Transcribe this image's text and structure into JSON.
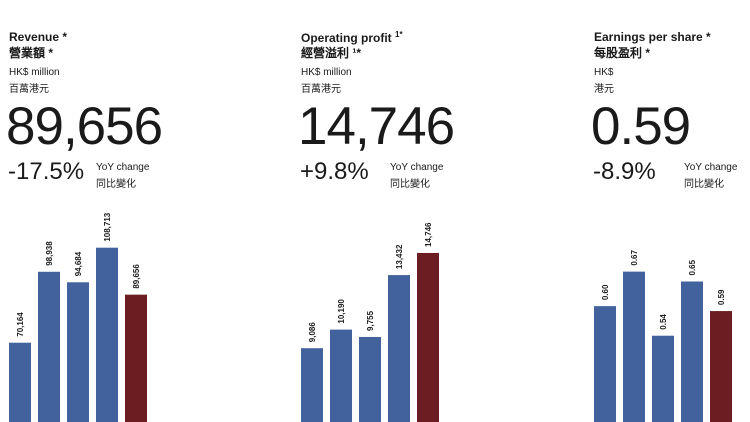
{
  "colors": {
    "bar": "#41629d",
    "highlight": "#6b1d22",
    "text": "#1a1a1a"
  },
  "charts": [
    {
      "title_en": "Revenue *",
      "title_en_sup": "",
      "title_zh": "營業額 *",
      "unit_en": "HK$ million",
      "unit_zh": "百萬港元",
      "value": "89,656",
      "change": "-17.5%",
      "yoy_en": "YoY change",
      "yoy_zh": "同比變化"
    },
    {
      "title_en": "Operating profit",
      "title_en_sup": "1*",
      "title_zh": "經營溢利 ¹*",
      "unit_en": "HK$ million",
      "unit_zh": "百萬港元",
      "value": "14,746",
      "change": "+9.8%",
      "yoy_en": "YoY change",
      "yoy_zh": "同比變化"
    },
    {
      "title_en": "Earnings per share *",
      "title_en_sup": "",
      "title_zh": "每股盈利 *",
      "unit_en": "HK$",
      "unit_zh": "港元",
      "value": "0.59",
      "change": "-8.9%",
      "yoy_en": "YoY change",
      "yoy_zh": "同比變化"
    }
  ],
  "chart_data": [
    {
      "type": "bar",
      "title": "Revenue *",
      "values": [
        70164,
        98938,
        94684,
        108713,
        89656
      ],
      "labels": [
        "70,164",
        "98,938",
        "94,684",
        "108,713",
        "89,656"
      ],
      "highlight_index": 4,
      "ylim": [
        38000,
        124000
      ]
    },
    {
      "type": "bar",
      "title": "Operating profit",
      "values": [
        9086,
        10190,
        9755,
        13432,
        14746
      ],
      "labels": [
        "9,086",
        "10,190",
        "9,755",
        "13,432",
        "14,746"
      ],
      "highlight_index": 4,
      "ylim": [
        4700,
        17300
      ]
    },
    {
      "type": "bar",
      "title": "Earnings per share *",
      "values": [
        0.6,
        0.67,
        0.54,
        0.65,
        0.59
      ],
      "labels": [
        "0.60",
        "0.67",
        "0.54",
        "0.65",
        "0.59"
      ],
      "highlight_index": 4,
      "ylim": [
        0.365,
        0.795
      ]
    }
  ]
}
